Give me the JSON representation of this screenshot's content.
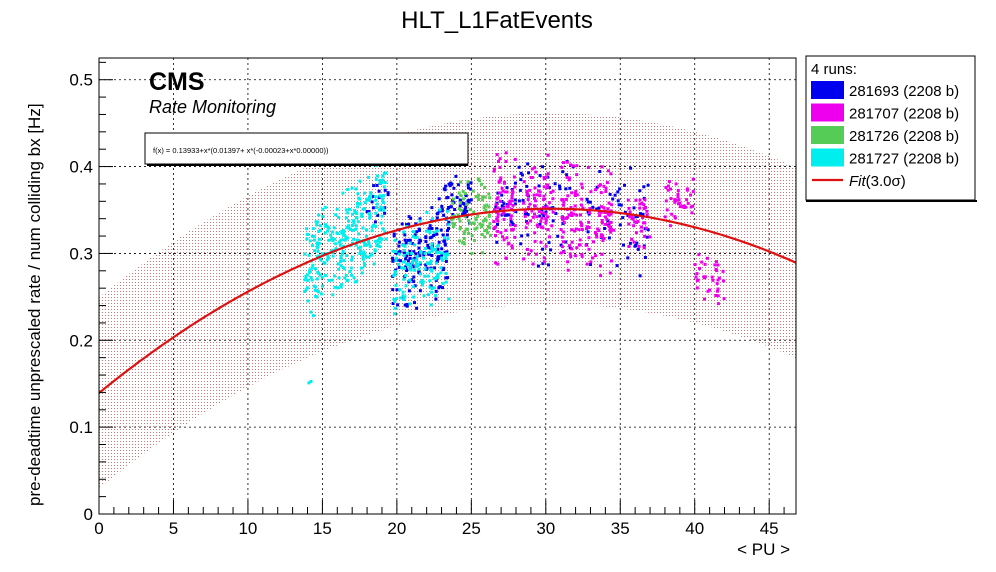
{
  "chart_data": {
    "type": "scatter",
    "title": "HLT_L1FatEvents",
    "xlabel": "< PU >",
    "ylabel": "pre-deadtime unprescaled rate / num colliding bx [Hz]",
    "xlim": [
      0,
      46.8
    ],
    "ylim": [
      0,
      0.525
    ],
    "x_ticks": [
      "0",
      "5",
      "10",
      "15",
      "20",
      "25",
      "30",
      "35",
      "40",
      "45"
    ],
    "y_ticks": [
      "0",
      "0.1",
      "0.2",
      "0.3",
      "0.4",
      "0.5"
    ],
    "grid": true,
    "legend_position": "right",
    "legend_header": "4 runs:",
    "annotation_main": "CMS",
    "annotation_sub": "Rate Monitoring",
    "fit_formula": "f(x) = 0.13933+x*(0.01397+ x*(-0.00023+x*0.00000))",
    "fit": {
      "label_prefix": "Fit",
      "label_suffix": "(3.0σ)",
      "color": "#dd1111",
      "coefficients": [
        0.13933,
        0.01397,
        -0.00023,
        0.0
      ],
      "band_halfwidth": 0.11,
      "band_color": "#c87878"
    },
    "series": [
      {
        "name": "281693 (2208 b)",
        "color": "#0000ee",
        "clusters": [
          {
            "x": [
              19.7,
              23.5
            ],
            "y": [
              0.23,
              0.37
            ],
            "n": 160,
            "trend": 0.006
          },
          {
            "x": [
              23,
              25
            ],
            "y": [
              0.33,
              0.39
            ],
            "n": 50,
            "trend": 0.0
          },
          {
            "x": [
              26.5,
              29
            ],
            "y": [
              0.3,
              0.42
            ],
            "n": 45,
            "trend": 0.0
          },
          {
            "x": [
              29.5,
              32
            ],
            "y": [
              0.28,
              0.42
            ],
            "n": 40,
            "trend": 0.0
          },
          {
            "x": [
              32.5,
              37
            ],
            "y": [
              0.27,
              0.41
            ],
            "n": 55,
            "trend": 0.0
          },
          {
            "x": [
              18,
              19.5
            ],
            "y": [
              0.33,
              0.39
            ],
            "n": 20,
            "trend": 0.0
          }
        ]
      },
      {
        "name": "281707 (2208 b)",
        "color": "#ee00ee",
        "clusters": [
          {
            "x": [
              26.5,
              28
            ],
            "y": [
              0.28,
              0.43
            ],
            "n": 80,
            "trend": 0.0
          },
          {
            "x": [
              28.5,
              30.5
            ],
            "y": [
              0.28,
              0.42
            ],
            "n": 80,
            "trend": 0.0
          },
          {
            "x": [
              31,
              32.5
            ],
            "y": [
              0.27,
              0.42
            ],
            "n": 70,
            "trend": 0.0
          },
          {
            "x": [
              32.7,
              34.6
            ],
            "y": [
              0.27,
              0.41
            ],
            "n": 70,
            "trend": 0.0
          },
          {
            "x": [
              35.5,
              37
            ],
            "y": [
              0.3,
              0.37
            ],
            "n": 40,
            "trend": 0.0
          },
          {
            "x": [
              38,
              40
            ],
            "y": [
              0.33,
              0.39
            ],
            "n": 40,
            "trend": 0.0
          },
          {
            "x": [
              40,
              42
            ],
            "y": [
              0.24,
              0.3
            ],
            "n": 35,
            "trend": 0.0
          }
        ]
      },
      {
        "name": "281726 (2208 b)",
        "color": "#55cc55",
        "clusters": [
          {
            "x": [
              23.5,
              26.3
            ],
            "y": [
              0.29,
              0.39
            ],
            "n": 90,
            "trend": 0.0
          }
        ]
      },
      {
        "name": "281727 (2208 b)",
        "color": "#00eeee",
        "clusters": [
          {
            "x": [
              13.8,
              19.3
            ],
            "y": [
              0.25,
              0.38
            ],
            "n": 300,
            "trend": 0.014
          },
          {
            "x": [
              19.7,
              23.5
            ],
            "y": [
              0.23,
              0.35
            ],
            "n": 140,
            "trend": 0.006
          },
          {
            "x": [
              14,
              14.4
            ],
            "y": [
              0.15,
              0.16
            ],
            "n": 2,
            "trend": 0.0
          }
        ]
      }
    ]
  }
}
